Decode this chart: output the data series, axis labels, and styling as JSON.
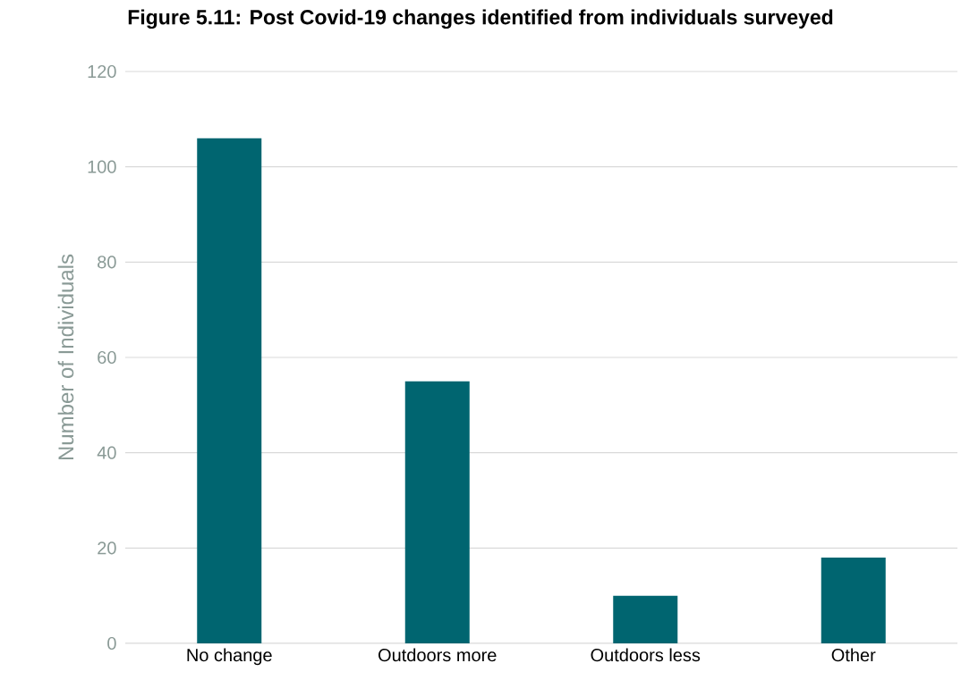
{
  "chart_data": {
    "type": "bar",
    "title": "Figure 5.11: Post Covid-19 changes identified from individuals surveyed",
    "ylabel": "Number of Individuals",
    "categories": [
      "No change",
      "Outdoors more",
      "Outdoors less",
      "Other"
    ],
    "values": [
      106,
      55,
      10,
      18
    ],
    "color": "#006570",
    "ylim": [
      0,
      120
    ],
    "yticks": [
      0,
      20,
      40,
      60,
      80,
      100,
      120
    ],
    "grid": "y"
  }
}
